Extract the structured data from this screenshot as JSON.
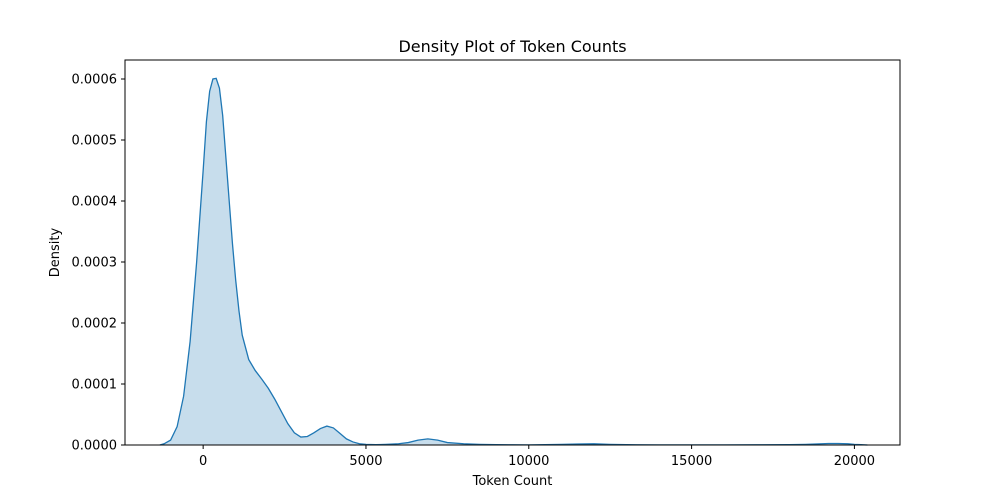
{
  "chart_data": {
    "type": "area",
    "title": "Density Plot of Token Counts",
    "xlabel": "Token Count",
    "ylabel": "Density",
    "xlim": [
      -2400,
      21400
    ],
    "ylim": [
      0,
      0.0006
    ],
    "x_ticks": [
      0,
      5000,
      10000,
      15000,
      20000
    ],
    "x_tick_labels": [
      "0",
      "5000",
      "10000",
      "15000",
      "20000"
    ],
    "y_ticks": [
      0,
      0.0001,
      0.0002,
      0.0003,
      0.0004,
      0.0005,
      0.0006
    ],
    "y_tick_labels": [
      "0.0000",
      "0.0001",
      "0.0002",
      "0.0003",
      "0.0004",
      "0.0005",
      "0.0006"
    ],
    "grid": false,
    "colors": {
      "line": "#1f77b4",
      "fill": "#1f77b4",
      "fill_opacity": 0.25
    },
    "series": [
      {
        "x": [
          -1330,
          -1200,
          -1000,
          -800,
          -600,
          -400,
          -200,
          0,
          100,
          200,
          300,
          400,
          500,
          600,
          700,
          800,
          900,
          1000,
          1100,
          1200,
          1400,
          1600,
          1800,
          2000,
          2200,
          2400,
          2600,
          2800,
          3000,
          3200,
          3400,
          3600,
          3800,
          4000,
          4200,
          4400,
          4600,
          4800,
          5000,
          5300,
          5600,
          6000,
          6300,
          6600,
          6900,
          7200,
          7500,
          8000,
          8500,
          9000,
          9500,
          10000,
          10500,
          11000,
          11500,
          12000,
          12200,
          12500,
          13000,
          14000,
          15000,
          16000,
          17000,
          18000,
          18500,
          19000,
          19200,
          19500,
          19800,
          20000,
          20200,
          20400
        ],
        "y": [
          0,
          2e-06,
          8e-06,
          3e-05,
          8e-05,
          0.00017,
          0.0003,
          0.00045,
          0.00053,
          0.00058,
          0.0006,
          0.000601,
          0.000585,
          0.00054,
          0.00047,
          0.0004,
          0.00033,
          0.00027,
          0.00022,
          0.00018,
          0.00014,
          0.000122,
          0.000108,
          9.3e-05,
          7.5e-05,
          5.5e-05,
          3.5e-05,
          2e-05,
          1.3e-05,
          1.4e-05,
          2e-05,
          2.7e-05,
          3.1e-05,
          2.8e-05,
          1.9e-05,
          1e-05,
          5e-06,
          2e-06,
          1e-06,
          5e-07,
          1e-06,
          2e-06,
          4e-06,
          8e-06,
          1e-05,
          8e-06,
          4e-06,
          2e-06,
          1e-06,
          5e-07,
          3e-07,
          2e-07,
          5e-07,
          1e-06,
          1.5e-06,
          2e-06,
          1.5e-06,
          1e-06,
          5e-07,
          2e-07,
          2e-07,
          2e-07,
          3e-07,
          5e-07,
          1e-06,
          2e-06,
          2.5e-06,
          2.5e-06,
          2e-06,
          1e-06,
          5e-07,
          0
        ]
      }
    ]
  }
}
